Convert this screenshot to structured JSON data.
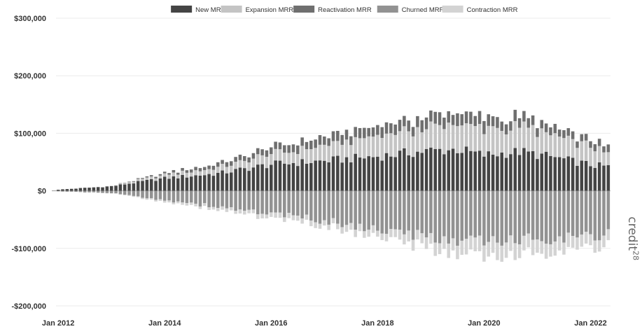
{
  "chart_data": {
    "type": "bar",
    "stacked": true,
    "title": "",
    "xlabel": "",
    "ylabel": "",
    "ylim": [
      -200000,
      300000
    ],
    "yticks": [
      300000,
      200000,
      100000,
      0,
      -100000,
      -200000
    ],
    "ytick_labels": [
      "$300,000",
      "$200,000",
      "$100,000",
      "$0",
      "-$100,000",
      "-$200,000"
    ],
    "xtick_labels": [
      "Jan 2012",
      "Jan 2014",
      "Jan 2016",
      "Jan 2018",
      "Jan 2020",
      "Jan 2022"
    ],
    "x_start": "2012-01",
    "x_end": "2022-05",
    "grid": "horizontal",
    "legend_position": "top",
    "series": [
      {
        "name": "New MRR",
        "color": "#444444",
        "keyframes": [
          [
            0,
            2000
          ],
          [
            12,
            8000
          ],
          [
            24,
            22000
          ],
          [
            36,
            30000
          ],
          [
            48,
            46000
          ],
          [
            60,
            52000
          ],
          [
            72,
            60000
          ],
          [
            84,
            70000
          ],
          [
            90,
            72000
          ],
          [
            96,
            62000
          ],
          [
            104,
            68000
          ],
          [
            112,
            58000
          ],
          [
            120,
            45000
          ],
          [
            124,
            42000
          ]
        ]
      },
      {
        "name": "Expansion MRR",
        "color": "#c4c4c4",
        "keyframes": [
          [
            0,
            0
          ],
          [
            12,
            500
          ],
          [
            24,
            6000
          ],
          [
            36,
            10000
          ],
          [
            48,
            18000
          ],
          [
            60,
            25000
          ],
          [
            72,
            35000
          ],
          [
            84,
            40000
          ],
          [
            92,
            45000
          ],
          [
            96,
            45000
          ],
          [
            108,
            40000
          ],
          [
            118,
            35000
          ],
          [
            124,
            22000
          ]
        ]
      },
      {
        "name": "Reactivation MRR",
        "color": "#6f6f6f",
        "keyframes": [
          [
            0,
            0
          ],
          [
            12,
            0
          ],
          [
            24,
            3000
          ],
          [
            36,
            7000
          ],
          [
            48,
            12000
          ],
          [
            60,
            15000
          ],
          [
            72,
            17000
          ],
          [
            84,
            20000
          ],
          [
            96,
            20000
          ],
          [
            108,
            16000
          ],
          [
            118,
            12000
          ],
          [
            124,
            12000
          ]
        ]
      },
      {
        "name": "Churned MRR",
        "color": "#929292",
        "keyframes": [
          [
            0,
            -1000
          ],
          [
            12,
            -4000
          ],
          [
            24,
            -16000
          ],
          [
            36,
            -28000
          ],
          [
            48,
            -40000
          ],
          [
            60,
            -52000
          ],
          [
            72,
            -68000
          ],
          [
            84,
            -82000
          ],
          [
            96,
            -90000
          ],
          [
            104,
            -85000
          ],
          [
            112,
            -82000
          ],
          [
            120,
            -78000
          ],
          [
            124,
            -75000
          ]
        ]
      },
      {
        "name": "Contraction MRR",
        "color": "#d3d3d3",
        "keyframes": [
          [
            0,
            0
          ],
          [
            12,
            -500
          ],
          [
            24,
            -3000
          ],
          [
            36,
            -5000
          ],
          [
            48,
            -8000
          ],
          [
            60,
            -10000
          ],
          [
            72,
            -12000
          ],
          [
            84,
            -20000
          ],
          [
            96,
            -28000
          ],
          [
            108,
            -25000
          ],
          [
            118,
            -22000
          ],
          [
            124,
            -20000
          ]
        ]
      }
    ]
  },
  "watermark": {
    "text": "credit",
    "sup": "28"
  }
}
